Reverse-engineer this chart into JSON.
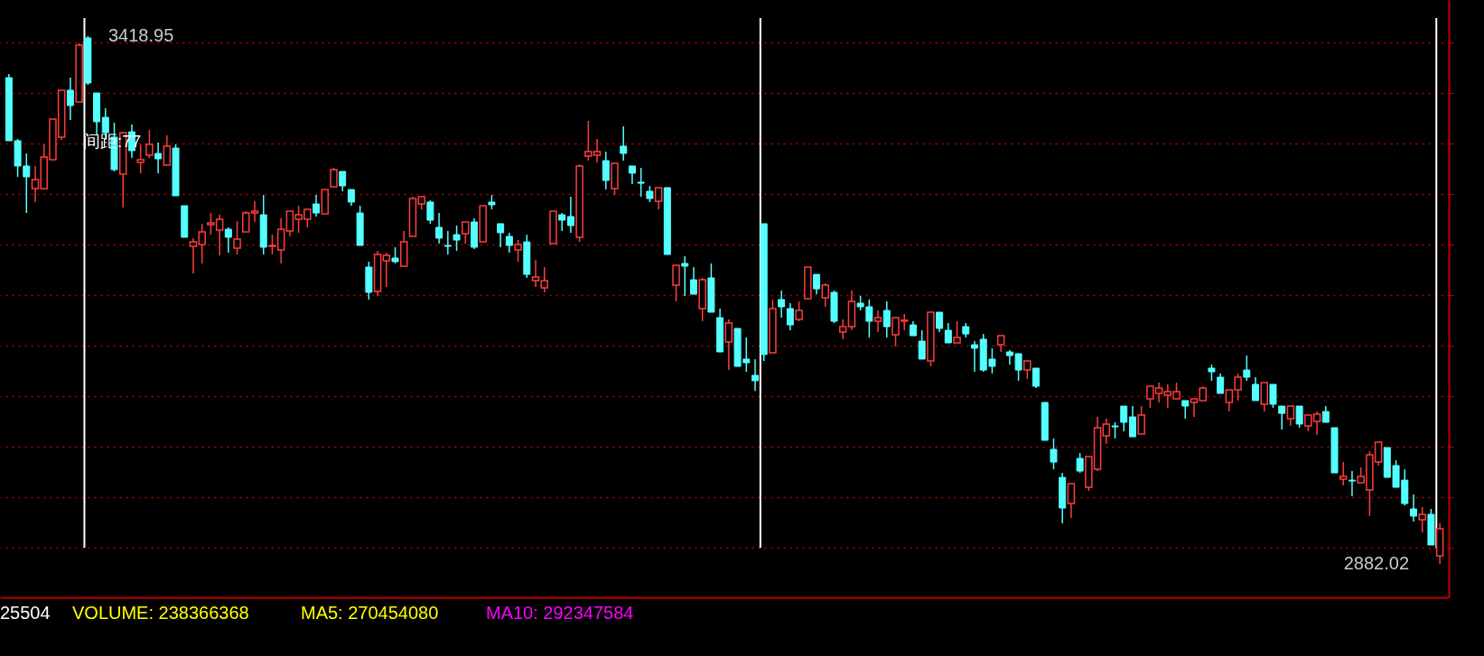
{
  "chart_data": {
    "type": "candlestick",
    "categories": [
      null,
      null,
      null,
      null,
      null,
      null,
      null,
      null,
      null,
      null,
      null,
      null,
      null,
      null,
      null,
      null,
      null,
      null,
      null,
      null,
      null,
      null,
      null,
      null,
      null,
      null,
      null,
      null,
      null,
      null,
      null,
      null,
      null,
      null,
      null,
      null,
      null,
      null,
      null,
      null,
      null,
      null,
      null,
      null,
      null,
      null,
      null,
      null,
      null,
      null,
      null,
      null,
      null,
      null,
      null,
      null,
      null,
      null,
      null,
      null,
      null,
      null,
      null,
      null,
      null,
      null,
      null,
      null,
      null,
      null,
      null,
      null,
      null,
      null,
      null,
      null,
      null,
      null,
      null,
      null,
      null,
      null,
      null,
      null,
      null,
      null,
      null,
      null,
      null,
      null,
      null,
      null,
      null,
      null,
      null,
      null,
      null,
      null,
      null,
      null,
      null,
      null,
      null,
      null,
      null,
      null,
      null,
      null,
      null,
      null,
      null,
      null,
      null,
      null,
      null,
      null,
      null,
      null,
      null,
      null,
      null,
      null,
      null,
      null,
      null,
      null,
      null,
      null,
      null,
      null,
      null,
      null,
      null,
      null,
      null,
      null,
      null,
      null,
      null,
      null,
      null,
      null,
      null,
      null,
      null,
      null,
      null,
      null,
      null,
      null,
      null,
      null,
      null,
      null,
      null,
      null,
      null,
      null,
      null,
      null,
      null,
      null,
      null,
      null
    ],
    "ohlc": [
      [
        3376.7,
        3380.4,
        3312.5,
        3312.5
      ],
      [
        3312.5,
        3314.3,
        3275.8,
        3286.8
      ],
      [
        3286.8,
        3299.6,
        3239.0,
        3275.8
      ],
      [
        3263.8,
        3286.8,
        3250.1,
        3273.0
      ],
      [
        3263.8,
        3308.8,
        3262.9,
        3296.0
      ],
      [
        3293.2,
        3334.5,
        3293.2,
        3334.5
      ],
      [
        3316.2,
        3363.9,
        3313.4,
        3363.9
      ],
      [
        3363.9,
        3376.7,
        3333.6,
        3348.3
      ],
      [
        3352.0,
        3411.6,
        3352.0,
        3409.8
      ],
      [
        3417.1,
        3418.95,
        3369.4,
        3371.2
      ],
      [
        3361.1,
        3361.1,
        3318.0,
        3331.8
      ],
      [
        3336.3,
        3345.5,
        3313.4,
        3320.7
      ],
      [
        3316.2,
        3330.8,
        3281.3,
        3283.1
      ],
      [
        3278.5,
        3321.6,
        3244.6,
        3320.7
      ],
      [
        3321.6,
        3329.0,
        3295.0,
        3302.4
      ],
      [
        3290.5,
        3308.8,
        3279.5,
        3293.2
      ],
      [
        3297.8,
        3323.5,
        3295.0,
        3308.8
      ],
      [
        3299.6,
        3310.6,
        3279.5,
        3294.1
      ],
      [
        3287.7,
        3318.0,
        3287.7,
        3306.9
      ],
      [
        3305.1,
        3308.8,
        3256.5,
        3256.5
      ],
      [
        3246.4,
        3246.4,
        3214.3,
        3214.3
      ],
      [
        3205.1,
        3213.4,
        3177.6,
        3209.6
      ],
      [
        3206.9,
        3228.1,
        3187.7,
        3219.8
      ],
      [
        3227.1,
        3239.0,
        3217.0,
        3228.9
      ],
      [
        3221.6,
        3237.2,
        3195.9,
        3232.6
      ],
      [
        3222.5,
        3224.4,
        3198.7,
        3214.3
      ],
      [
        3203.2,
        3230.8,
        3196.8,
        3212.5
      ],
      [
        3219.8,
        3240.9,
        3219.8,
        3239.0
      ],
      [
        3239.0,
        3251.0,
        3229.9,
        3240.9
      ],
      [
        3237.2,
        3257.4,
        3196.8,
        3204.2
      ],
      [
        3205.1,
        3217.0,
        3196.8,
        3206.0
      ],
      [
        3201.4,
        3233.6,
        3187.7,
        3222.5
      ],
      [
        3220.7,
        3240.9,
        3215.2,
        3240.9
      ],
      [
        3232.6,
        3246.4,
        3218.9,
        3237.2
      ],
      [
        3232.6,
        3242.7,
        3224.4,
        3242.7
      ],
      [
        3248.2,
        3257.4,
        3235.4,
        3239.0
      ],
      [
        3238.1,
        3262.9,
        3238.1,
        3262.9
      ],
      [
        3265.7,
        3284.9,
        3265.7,
        3283.1
      ],
      [
        3281.3,
        3281.3,
        3261.1,
        3266.6
      ],
      [
        3262.9,
        3262.9,
        3246.4,
        3250.1
      ],
      [
        3239.0,
        3246.4,
        3206.0,
        3206.0
      ],
      [
        3184.0,
        3189.5,
        3150.9,
        3158.3
      ],
      [
        3159.2,
        3200.5,
        3154.6,
        3196.8
      ],
      [
        3190.4,
        3198.7,
        3163.8,
        3195.9
      ],
      [
        3193.2,
        3204.2,
        3187.7,
        3189.5
      ],
      [
        3184.9,
        3220.7,
        3184.9,
        3209.6
      ],
      [
        3215.2,
        3255.6,
        3215.2,
        3253.7
      ],
      [
        3248.2,
        3255.6,
        3242.7,
        3255.6
      ],
      [
        3250.1,
        3251.9,
        3228.1,
        3231.7
      ],
      [
        3224.4,
        3239.0,
        3207.8,
        3213.4
      ],
      [
        3206.0,
        3220.7,
        3196.8,
        3205.1
      ],
      [
        3217.0,
        3226.2,
        3200.5,
        3211.5
      ],
      [
        3218.0,
        3229.9,
        3207.8,
        3229.9
      ],
      [
        3229.9,
        3233.6,
        3202.3,
        3204.2
      ],
      [
        3209.6,
        3246.4,
        3209.6,
        3246.4
      ],
      [
        3250.1,
        3257.4,
        3242.7,
        3247.3
      ],
      [
        3228.1,
        3228.1,
        3204.2,
        3218.9
      ],
      [
        3215.2,
        3218.9,
        3198.7,
        3206.0
      ],
      [
        3201.4,
        3211.5,
        3189.5,
        3207.0
      ],
      [
        3209.6,
        3217.0,
        3173.0,
        3176.6
      ],
      [
        3170.2,
        3191.3,
        3163.8,
        3173.9
      ],
      [
        3162.8,
        3184.0,
        3158.3,
        3170.2
      ],
      [
        3207.8,
        3240.9,
        3207.8,
        3240.9
      ],
      [
        3237.2,
        3239.0,
        3220.7,
        3231.7
      ],
      [
        3235.4,
        3255.6,
        3218.9,
        3226.2
      ],
      [
        3214.3,
        3288.6,
        3209.6,
        3286.8
      ],
      [
        3296.9,
        3332.7,
        3292.3,
        3301.5
      ],
      [
        3297.8,
        3314.3,
        3290.5,
        3301.5
      ],
      [
        3292.3,
        3301.5,
        3262.9,
        3272.1
      ],
      [
        3263.8,
        3289.5,
        3257.4,
        3289.5
      ],
      [
        3307.0,
        3327.2,
        3292.3,
        3299.6
      ],
      [
        3286.8,
        3286.8,
        3268.4,
        3279.5
      ],
      [
        3270.3,
        3284.9,
        3255.6,
        3269.3
      ],
      [
        3261.1,
        3266.6,
        3250.1,
        3253.7
      ],
      [
        3251.0,
        3264.8,
        3242.7,
        3264.8
      ],
      [
        3264.8,
        3264.8,
        3196.8,
        3196.8
      ],
      [
        3165.6,
        3185.8,
        3149.1,
        3185.8
      ],
      [
        3187.7,
        3195.0,
        3154.6,
        3184.9
      ],
      [
        3171.1,
        3184.0,
        3156.4,
        3156.4
      ],
      [
        3141.8,
        3173.0,
        3128.9,
        3171.1
      ],
      [
        3173.0,
        3187.7,
        3138.1,
        3138.1
      ],
      [
        3132.6,
        3141.8,
        3097.7,
        3097.7
      ],
      [
        3107.8,
        3130.8,
        3079.3,
        3127.1
      ],
      [
        3121.6,
        3121.6,
        3083.0,
        3083.0
      ],
      [
        3090.4,
        3112.4,
        3077.5,
        3086.7
      ],
      [
        3073.9,
        3090.4,
        3058.1,
        3068.4
      ],
      [
        3228.1,
        3228.1,
        3088.5,
        3095.0
      ],
      [
        3096.8,
        3151.0,
        3096.8,
        3141.8
      ],
      [
        3151.0,
        3160.1,
        3132.6,
        3143.6
      ],
      [
        3141.8,
        3147.3,
        3119.7,
        3125.2
      ],
      [
        3130.8,
        3149.1,
        3128.9,
        3139.9
      ],
      [
        3151.9,
        3184.0,
        3151.9,
        3184.0
      ],
      [
        3176.6,
        3176.6,
        3156.4,
        3161.9
      ],
      [
        3152.8,
        3167.5,
        3143.6,
        3165.6
      ],
      [
        3158.3,
        3160.1,
        3127.1,
        3128.9
      ],
      [
        3117.9,
        3130.8,
        3110.6,
        3123.4
      ],
      [
        3123.4,
        3160.1,
        3119.7,
        3149.1
      ],
      [
        3147.3,
        3154.6,
        3139.9,
        3143.6
      ],
      [
        3143.6,
        3151.0,
        3112.4,
        3128.9
      ],
      [
        3128.9,
        3139.9,
        3117.9,
        3132.6
      ],
      [
        3139.9,
        3149.1,
        3112.4,
        3123.4
      ],
      [
        3115.2,
        3132.6,
        3103.2,
        3132.6
      ],
      [
        3129.0,
        3136.3,
        3119.7,
        3130.0
      ],
      [
        3125.2,
        3128.9,
        3114.2,
        3114.2
      ],
      [
        3108.7,
        3119.7,
        3090.4,
        3090.4
      ],
      [
        3088.5,
        3138.1,
        3083.0,
        3138.1
      ],
      [
        3138.1,
        3138.1,
        3117.9,
        3121.6
      ],
      [
        3119.7,
        3127.1,
        3106.9,
        3106.9
      ],
      [
        3106.9,
        3128.9,
        3106.9,
        3112.4
      ],
      [
        3123.4,
        3127.1,
        3112.4,
        3116.0
      ],
      [
        3105.0,
        3108.7,
        3077.5,
        3101.4
      ],
      [
        3110.6,
        3116.0,
        3077.5,
        3079.3
      ],
      [
        3090.4,
        3101.4,
        3075.7,
        3083.0
      ],
      [
        3105.0,
        3114.2,
        3097.7,
        3114.2
      ],
      [
        3097.7,
        3099.6,
        3084.9,
        3094.0
      ],
      [
        3095.9,
        3095.9,
        3068.3,
        3079.3
      ],
      [
        3079.3,
        3088.5,
        3070.2,
        3088.5
      ],
      [
        3081.2,
        3081.2,
        3061.0,
        3062.8
      ],
      [
        3046.3,
        3046.3,
        3007.8,
        3007.8
      ],
      [
        2998.6,
        3009.6,
        2978.4,
        2985.7
      ],
      [
        2970.1,
        2974.7,
        2923.3,
        2938.9
      ],
      [
        2943.5,
        2963.7,
        2928.8,
        2963.7
      ],
      [
        2989.4,
        2994.9,
        2974.7,
        2976.5
      ],
      [
        2960.0,
        2991.2,
        2956.4,
        2991.2
      ],
      [
        2978.4,
        3031.6,
        2976.5,
        3020.6
      ],
      [
        3012.4,
        3029.8,
        3004.1,
        3024.3
      ],
      [
        3022.4,
        3026.1,
        3009.6,
        3021.5
      ],
      [
        3042.6,
        3042.6,
        3016.9,
        3026.1
      ],
      [
        3031.6,
        3042.6,
        3011.4,
        3011.4
      ],
      [
        3014.2,
        3042.6,
        3014.2,
        3033.4
      ],
      [
        3049.9,
        3062.8,
        3040.8,
        3062.8
      ],
      [
        3055.5,
        3066.5,
        3046.3,
        3061.0
      ],
      [
        3053.6,
        3064.7,
        3040.8,
        3057.3
      ],
      [
        3050.0,
        3066.5,
        3050.0,
        3057.3
      ],
      [
        3048.2,
        3048.2,
        3029.8,
        3042.6
      ],
      [
        3046.3,
        3050.0,
        3031.6,
        3050.0
      ],
      [
        3048.2,
        3062.8,
        3048.2,
        3061.0
      ],
      [
        3081.2,
        3084.9,
        3068.4,
        3077.5
      ],
      [
        3072.0,
        3075.7,
        3055.5,
        3055.5
      ],
      [
        3046.3,
        3059.1,
        3037.1,
        3059.1
      ],
      [
        3059.1,
        3075.7,
        3048.2,
        3072.0
      ],
      [
        3079.3,
        3094.0,
        3068.4,
        3072.0
      ],
      [
        3064.7,
        3072.0,
        3048.2,
        3048.2
      ],
      [
        3044.5,
        3066.5,
        3037.1,
        3066.5
      ],
      [
        3064.7,
        3064.7,
        3040.8,
        3044.5
      ],
      [
        3042.6,
        3042.6,
        3018.8,
        3035.2
      ],
      [
        3029.8,
        3042.6,
        3022.4,
        3042.6
      ],
      [
        3042.6,
        3042.6,
        3020.6,
        3024.3
      ],
      [
        3022.4,
        3033.4,
        3016.9,
        3033.4
      ],
      [
        3027.0,
        3037.1,
        3013.3,
        3034.3
      ],
      [
        3037.1,
        3042.6,
        3026.1,
        3026.1
      ],
      [
        3020.6,
        3020.6,
        2974.7,
        2974.7
      ],
      [
        2968.3,
        2985.7,
        2961.9,
        2971.0
      ],
      [
        2967.3,
        2976.5,
        2950.8,
        2966.4
      ],
      [
        2964.6,
        2980.2,
        2964.6,
        2971.0
      ],
      [
        2957.3,
        2996.7,
        2930.7,
        2993.1
      ],
      [
        2985.7,
        3005.9,
        2982.1,
        3005.9
      ],
      [
        3000.4,
        3000.4,
        2970.1,
        2970.1
      ],
      [
        2982.1,
        2987.5,
        2960.0,
        2960.0
      ],
      [
        2967.3,
        2978.4,
        2941.6,
        2943.5
      ],
      [
        2938.0,
        2952.7,
        2925.1,
        2930.7
      ],
      [
        2927.0,
        2939.8,
        2914.1,
        2932.5
      ],
      [
        2932.5,
        2938.0,
        2901.3,
        2901.3
      ],
      [
        2890.3,
        2923.3,
        2882.02,
        2917.8
      ]
    ],
    "yticks": [
      {
        "value": 3412.5,
        "label": null
      },
      {
        "value": 3361.1,
        "label": null
      },
      {
        "value": 3309.7,
        "label": null
      },
      {
        "value": 3258.3,
        "label": null
      },
      {
        "value": 3206.9,
        "label": null
      },
      {
        "value": 3155.5,
        "label": null
      },
      {
        "value": 3104.1,
        "label": null
      },
      {
        "value": 3052.7,
        "label": null
      },
      {
        "value": 3001.3,
        "label": null
      },
      {
        "value": 2949.9,
        "label": null
      },
      {
        "value": 2898.5,
        "label": null
      }
    ],
    "grid": "y",
    "annotations": [
      "3418.95",
      "2882.02",
      "间距:77",
      "25504",
      "VOLUME: 238366368",
      "MA5: 270454080",
      "MA10: 292347584"
    ]
  }
}
